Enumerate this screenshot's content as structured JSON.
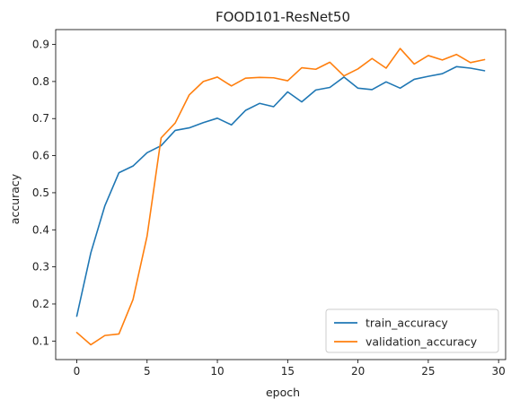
{
  "chart_data": {
    "type": "line",
    "title": "FOOD101-ResNet50",
    "xlabel": "epoch",
    "ylabel": "accuracy",
    "xlim": [
      -1.5,
      30.5
    ],
    "ylim": [
      0.05,
      0.94
    ],
    "xticks": [
      0,
      5,
      10,
      15,
      20,
      25,
      30
    ],
    "yticks": [
      0.1,
      0.2,
      0.3,
      0.4,
      0.5,
      0.6,
      0.7,
      0.8,
      0.9
    ],
    "x": [
      0,
      1,
      2,
      3,
      4,
      5,
      6,
      7,
      8,
      9,
      10,
      11,
      12,
      13,
      14,
      15,
      16,
      17,
      18,
      19,
      20,
      21,
      22,
      23,
      24,
      25,
      26,
      27,
      28,
      29
    ],
    "series": [
      {
        "name": "train_accuracy",
        "color": "#1f77b4",
        "values": [
          0.167,
          0.338,
          0.465,
          0.554,
          0.572,
          0.608,
          0.627,
          0.668,
          0.675,
          0.689,
          0.701,
          0.683,
          0.722,
          0.741,
          0.732,
          0.772,
          0.745,
          0.777,
          0.784,
          0.812,
          0.782,
          0.778,
          0.799,
          0.782,
          0.806,
          0.814,
          0.821,
          0.84,
          0.836,
          0.829
        ]
      },
      {
        "name": "validation_accuracy",
        "color": "#ff7f0e",
        "values": [
          0.123,
          0.09,
          0.115,
          0.119,
          0.212,
          0.383,
          0.648,
          0.688,
          0.764,
          0.8,
          0.812,
          0.788,
          0.809,
          0.811,
          0.81,
          0.802,
          0.837,
          0.833,
          0.852,
          0.815,
          0.834,
          0.862,
          0.836,
          0.889,
          0.847,
          0.87,
          0.858,
          0.873,
          0.851,
          0.859
        ]
      }
    ],
    "legend": "lower-right",
    "grid": false
  }
}
